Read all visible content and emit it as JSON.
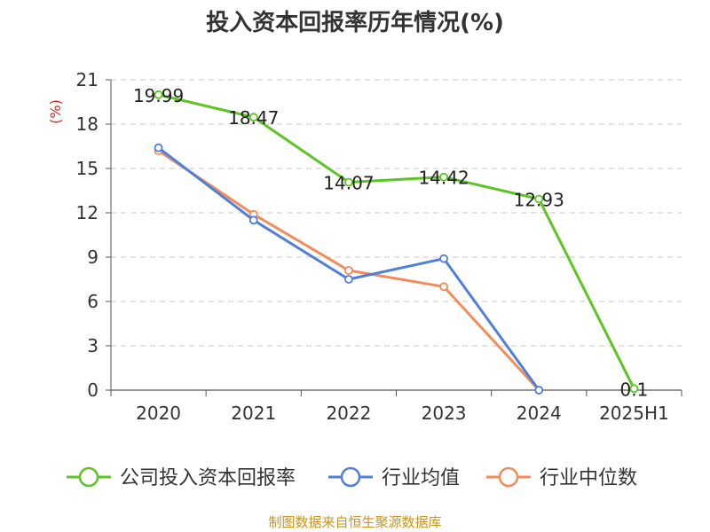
{
  "chart_data": {
    "type": "line",
    "title": "投入资本回报率历年情况(%)",
    "ylabel": "(%)",
    "categories": [
      "2020",
      "2021",
      "2022",
      "2023",
      "2024",
      "2025H1"
    ],
    "yticks": [
      "0",
      "3",
      "6",
      "9",
      "12",
      "15",
      "18",
      "21"
    ],
    "ylim": [
      0,
      21
    ],
    "grid": true,
    "legend_position": "bottom",
    "series": [
      {
        "name": "公司投入资本回报率",
        "color": "#5cc424",
        "values": [
          19.99,
          18.47,
          14.07,
          14.42,
          12.93,
          0.1
        ],
        "labels": [
          "19.99",
          "18.47",
          "14.07",
          "14.42",
          "12.93",
          "0.1"
        ]
      },
      {
        "name": "行业均值",
        "color": "#4f7fdb",
        "values": [
          16.4,
          11.5,
          7.5,
          8.9,
          0,
          null
        ]
      },
      {
        "name": "行业中位数",
        "color": "#f48c5a",
        "values": [
          16.2,
          11.9,
          8.1,
          7.0,
          0,
          null
        ]
      }
    ],
    "source": "制图数据来自恒生聚源数据库"
  }
}
